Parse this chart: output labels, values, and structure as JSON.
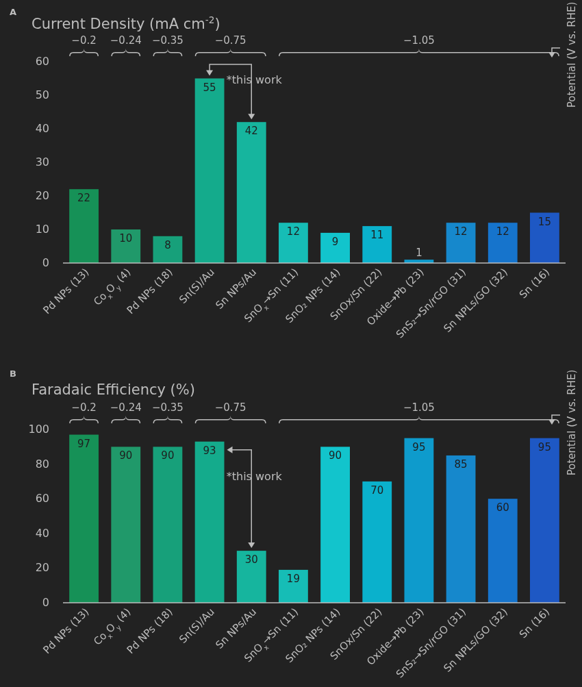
{
  "chart_data": [
    {
      "type": "bar",
      "title": "Current Density (mA cm$^{-2}$)",
      "y2label": "Potential (V vs. RHE)",
      "categories": [
        "Pd NPs (13)",
        "Co$_{x}$O$_{y}$ (4)",
        "Pd NPs (18)",
        "Sn(S)/Au",
        "Sn NPs/Au",
        "SnO$_{x}$→Sn (11)",
        "SnO₂ NPs (14)",
        "SnOx/Sn (22)",
        "Oxide→Pb (23)",
        "SnS₂→Sn/rGO (31)",
        "Sn NPLs/GO (32)",
        "Sn (16)"
      ],
      "values": [
        22,
        10,
        8,
        55,
        42,
        12,
        9,
        11,
        1,
        12,
        12,
        15
      ],
      "colors": [
        "#169157",
        "#20996a",
        "#17a07a",
        "#14ab8c",
        "#16b59e",
        "#16bdb6",
        "#12c4cc",
        "#0ab1cc",
        "#0e9bcc",
        "#1688cc",
        "#1674cc",
        "#1e58c4"
      ],
      "ylim": [
        0,
        60
      ],
      "yticks": [
        0,
        10,
        20,
        30,
        40,
        50,
        60
      ],
      "data_labels": true,
      "annotations": [
        "A",
        "−0.2",
        "−0.24",
        "−0.35",
        "−0.75",
        "−1.05",
        "*this work"
      ]
    },
    {
      "type": "bar",
      "title": "Faradaic Efficiency (%)",
      "y2label": "Potential (V vs. RHE)",
      "categories": [
        "Pd NPs (13)",
        "Co$_{x}$O$_{y}$ (4)",
        "Pd NPs (18)",
        "Sn(S)/Au",
        "Sn NPs/Au",
        "SnO$_{x}$→Sn (11)",
        "SnO₂ NPs (14)",
        "SnOx/Sn (22)",
        "Oxide→Pb (23)",
        "SnS₂→Sn/rGO (31)",
        "Sn NPLs/GO (32)",
        "Sn (16)"
      ],
      "values": [
        97,
        90,
        90,
        93,
        30,
        19,
        90,
        70,
        95,
        85,
        60,
        95
      ],
      "colors": [
        "#169157",
        "#20996a",
        "#17a07a",
        "#14ab8c",
        "#16b59e",
        "#16bdb6",
        "#12c4cc",
        "#0ab1cc",
        "#0e9bcc",
        "#1688cc",
        "#1674cc",
        "#1e58c4"
      ],
      "ylim": [
        0,
        100
      ],
      "yticks": [
        0,
        20,
        40,
        60,
        80,
        100
      ],
      "data_labels": true,
      "annotations": [
        "B",
        "−0.2",
        "−0.24",
        "−0.35",
        "−0.75",
        "−1.05",
        "*this work"
      ]
    }
  ]
}
